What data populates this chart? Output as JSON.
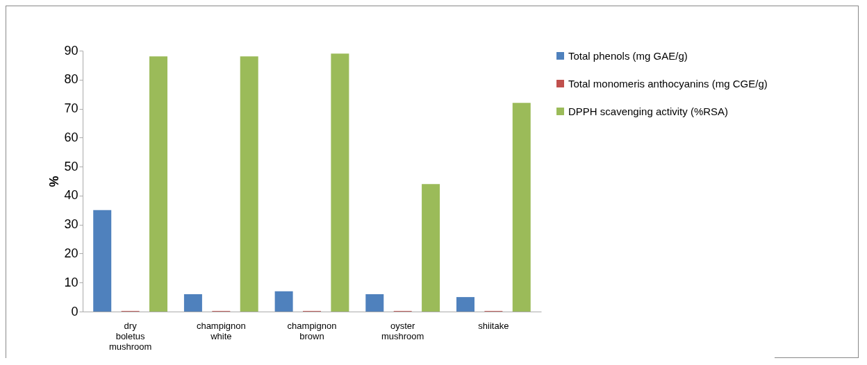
{
  "chart_data": {
    "type": "bar",
    "ylabel": "%",
    "categories": [
      "dry boletus mushroom",
      "champignon white",
      "champignon brown",
      "oyster mushroom",
      "shiitake"
    ],
    "series": [
      {
        "name": "Total phenols (mg GAE/g)",
        "color": "#4f81bd",
        "values": [
          35,
          6,
          7,
          6,
          5
        ]
      },
      {
        "name": "Total monomeris anthocyanins (mg CGE/g)",
        "color": "#c0504d",
        "values": [
          0.2,
          0.2,
          0.2,
          0.2,
          0.2
        ]
      },
      {
        "name": "DPPH scavenging activity (%RSA)",
        "color": "#9bbb59",
        "values": [
          88,
          88,
          89,
          44,
          72
        ]
      }
    ],
    "ylim": [
      0,
      90
    ],
    "yticks": [
      0,
      10,
      20,
      30,
      40,
      50,
      60,
      70,
      80,
      90
    ],
    "grid": false,
    "legend": "right"
  }
}
